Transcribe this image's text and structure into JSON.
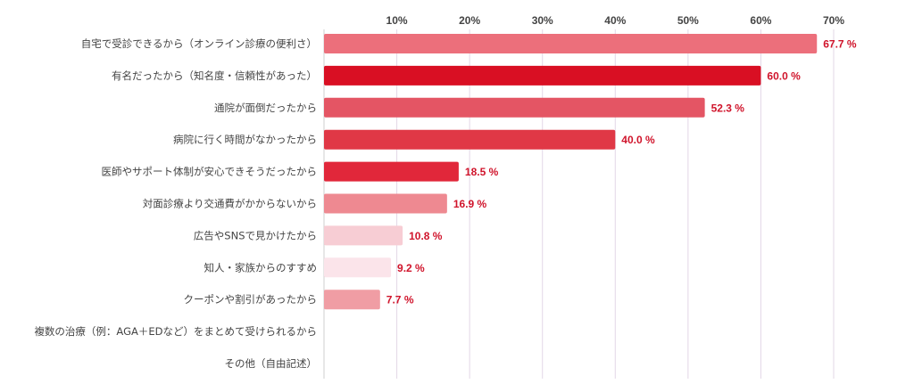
{
  "chart_data": {
    "type": "bar",
    "orientation": "horizontal",
    "title": "",
    "xlabel": "",
    "ylabel": "",
    "xlim": [
      0,
      70
    ],
    "x_ticks": [
      {
        "value": 10,
        "label": "10%"
      },
      {
        "value": 20,
        "label": "20%"
      },
      {
        "value": 30,
        "label": "30%"
      },
      {
        "value": 40,
        "label": "40%"
      },
      {
        "value": 50,
        "label": "50%"
      },
      {
        "value": 60,
        "label": "60%"
      },
      {
        "value": 70,
        "label": "70%"
      }
    ],
    "grid": true,
    "categories": [
      "自宅で受診できるから（オンライン診療の便利さ）",
      "有名だったから（知名度・信頼性があった）",
      "通院が面倒だったから",
      "病院に行く時間がなかったから",
      "医師やサポート体制が安心できそうだったから",
      "対面診療より交通費がかからないから",
      "広告やSNSで見かけたから",
      "知人・家族からのすすめ",
      "クーポンや割引があったから",
      "複数の治療（例：AGA＋EDなど）をまとめて受けられるから",
      "その他（自由記述）"
    ],
    "values": [
      67.7,
      60.0,
      52.3,
      40.0,
      18.5,
      16.9,
      10.8,
      9.2,
      7.7,
      null,
      null
    ],
    "value_labels": [
      "67.7 %",
      "60.0 %",
      "52.3 %",
      "40.0 %",
      "18.5 %",
      "16.9 %",
      "10.8 %",
      "9.2 %",
      "7.7 %",
      "",
      ""
    ],
    "bar_colors": [
      "#ec6f7b",
      "#d90f23",
      "#e45564",
      "#e03846",
      "#e1273a",
      "#ee8991",
      "#f7cdd4",
      "#fbe4ea",
      "#f09da4",
      "#ffffff",
      "#ffffff"
    ],
    "label_color": "#d0142b"
  }
}
